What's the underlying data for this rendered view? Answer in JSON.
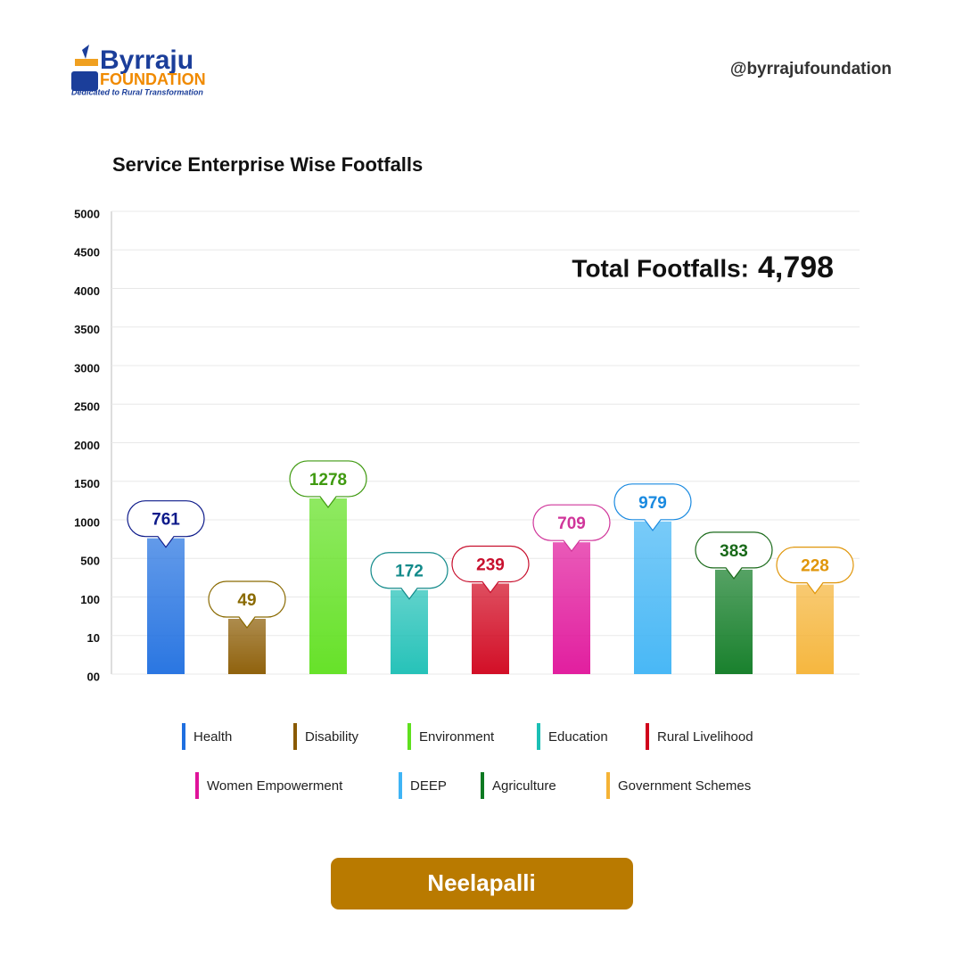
{
  "brand": {
    "name": "Byrraju",
    "sub": "FOUNDATION",
    "tagline": "Dedicated to Rural Transformation",
    "handle": "@byrrajufoundation"
  },
  "chart_data": {
    "type": "bar",
    "title": "Service Enterprise Wise Footfalls",
    "categories": [
      "Health",
      "Disability",
      "Environment",
      "Education",
      "Rural Livelihood",
      "Women Empowerment",
      "DEEP",
      "Agriculture",
      "Government Schemes"
    ],
    "values": [
      761,
      49,
      1278,
      172,
      239,
      709,
      979,
      383,
      228
    ],
    "colors": [
      "#1f6fe0",
      "#8a5a00",
      "#5fe01e",
      "#1bbfb5",
      "#d0021b",
      "#e0139a",
      "#3fb4f5",
      "#0d7a22",
      "#f5b335"
    ],
    "label_colors": [
      "#0d1a8a",
      "#8a6a00",
      "#3f9a10",
      "#128a8a",
      "#c8102e",
      "#d0359a",
      "#1a8ae0",
      "#1a6a1a",
      "#e0960a"
    ],
    "ylim": [
      0,
      5000
    ],
    "yticks": [
      {
        "value": 0,
        "label": "00"
      },
      10,
      100,
      500,
      1000,
      1500,
      2000,
      2500,
      3000,
      3500,
      4000,
      4500,
      5000
    ],
    "scale": "tick-spaced",
    "grid": true,
    "total_title": "Total Footfalls:",
    "total": {
      "value": 4798,
      "label": "4,798"
    }
  },
  "footer": {
    "location": "Neelapalli"
  }
}
